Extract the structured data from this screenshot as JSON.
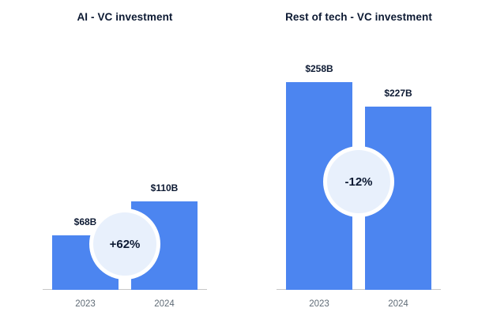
{
  "page": {
    "background": "#ffffff"
  },
  "colors": {
    "bar": "#4c85f0",
    "badge_bg": "#e8f0fc",
    "text": "#0d1a33",
    "axis": "#c7c7c7",
    "tick_text": "#5f6b76"
  },
  "chart_data": [
    {
      "type": "bar",
      "title": "AI - VC investment",
      "categories": [
        "2023",
        "2024"
      ],
      "values": [
        68,
        110
      ],
      "value_labels": [
        "$68B",
        "$110B"
      ],
      "change_badge": "+62%",
      "unit": "USD billions",
      "ylim": [
        0,
        280
      ],
      "grid": false,
      "legend": false
    },
    {
      "type": "bar",
      "title": "Rest of tech - VC investment",
      "categories": [
        "2023",
        "2024"
      ],
      "values": [
        258,
        227
      ],
      "value_labels": [
        "$258B",
        "$227B"
      ],
      "change_badge": "-12%",
      "unit": "USD billions",
      "ylim": [
        0,
        280
      ],
      "grid": false,
      "legend": false
    }
  ]
}
